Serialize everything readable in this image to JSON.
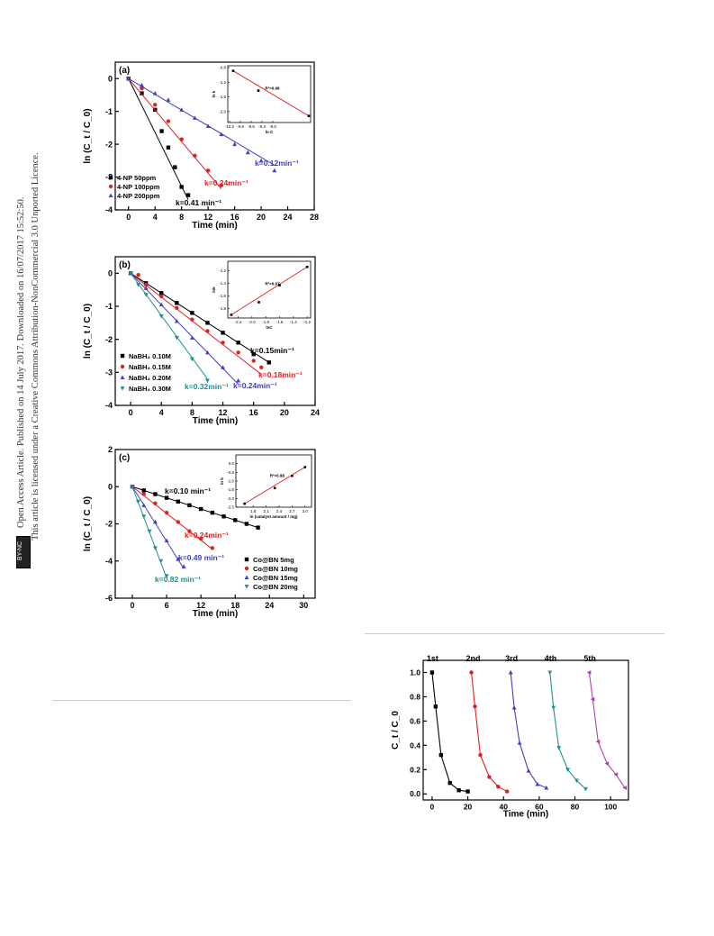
{
  "sidebar": {
    "line1": "Open Access Article. Published on 14 July 2017. Downloaded on 16/07/2017 15:52:50.",
    "line2": "This article is licensed under a Creative Commons Attribution-NonCommercial 3.0 Unported Licence.",
    "badge": "BY-NC"
  },
  "chart_data": [
    {
      "type": "scatter",
      "panel_label": "(a)",
      "xlabel": "Time (min)",
      "ylabel": "ln (C_t / C_0)",
      "xlim": [
        -2,
        28
      ],
      "ylim": [
        -4,
        0.5
      ],
      "xticks": [
        "0",
        "4",
        "8",
        "12",
        "16",
        "20",
        "24",
        "28"
      ],
      "yticks": [
        "0",
        "-1",
        "-2",
        "-3",
        "-4"
      ],
      "legend": "bottom-left",
      "series": [
        {
          "name": "4-NP 50ppm",
          "color": "#000000",
          "marker": "square",
          "x": [
            0,
            2,
            4,
            5,
            6,
            7,
            8,
            9
          ],
          "y": [
            0,
            -0.45,
            -0.95,
            -1.6,
            -2.1,
            -2.7,
            -3.3,
            -3.55
          ],
          "fit_slope": -0.41,
          "k_label": "k=0.41 min⁻¹"
        },
        {
          "name": "4-NP 100ppm",
          "color": "#e02020",
          "marker": "circle",
          "x": [
            0,
            2,
            4,
            6,
            8,
            10,
            12,
            14
          ],
          "y": [
            0,
            -0.3,
            -0.8,
            -1.3,
            -1.85,
            -2.35,
            -2.8,
            -3.25
          ],
          "fit_slope": -0.24,
          "k_label": "k=0.24min⁻¹"
        },
        {
          "name": "4-NP 200ppm",
          "color": "#4040c0",
          "marker": "triangle",
          "x": [
            0,
            2,
            4,
            6,
            8,
            10,
            12,
            14,
            16,
            18,
            20,
            22
          ],
          "y": [
            0,
            -0.2,
            -0.45,
            -0.65,
            -0.95,
            -1.2,
            -1.45,
            -1.7,
            -2.0,
            -2.25,
            -2.5,
            -2.8
          ],
          "fit_slope": -0.12,
          "k_label": "k=0.12min⁻¹"
        }
      ],
      "inset": {
        "xlabel": "ln C",
        "ylabel": "ln k",
        "r2": "R²=0.98",
        "xlim": [
          -10.25,
          -7.95
        ],
        "ylim": [
          -2.3,
          -0.75
        ],
        "xticks": [
          "-10.2",
          "-9.9",
          "-9.6",
          "-9.3",
          "-9.0"
        ],
        "yticks": [
          "-0.8",
          "-1.2",
          "-1.6",
          "-2.0"
        ],
        "x": [
          -10.1,
          -9.4,
          -8.0
        ],
        "y": [
          -0.89,
          -1.43,
          -2.12
        ]
      }
    },
    {
      "type": "scatter",
      "panel_label": "(b)",
      "xlabel": "Time (min)",
      "ylabel": "ln (C_t / C_0)",
      "xlim": [
        -2,
        24
      ],
      "ylim": [
        -4,
        0.5
      ],
      "xticks": [
        "0",
        "4",
        "8",
        "12",
        "16",
        "20",
        "24"
      ],
      "yticks": [
        "0",
        "-1",
        "-2",
        "-3",
        "-4"
      ],
      "legend": "bottom-left",
      "series": [
        {
          "name": "NaBH₄ 0.10M",
          "color": "#000000",
          "marker": "square",
          "x": [
            0,
            2,
            4,
            6,
            8,
            10,
            12,
            14,
            16,
            18
          ],
          "y": [
            0,
            -0.3,
            -0.6,
            -0.9,
            -1.2,
            -1.5,
            -1.8,
            -2.1,
            -2.45,
            -2.7
          ],
          "fit_slope": -0.15,
          "k_label": "k=0.15min⁻¹"
        },
        {
          "name": "NaBH₄ 0.15M",
          "color": "#e02020",
          "marker": "circle",
          "x": [
            0,
            1,
            2,
            4,
            6,
            8,
            10,
            12,
            14,
            16,
            17
          ],
          "y": [
            0,
            -0.05,
            -0.35,
            -0.7,
            -1.05,
            -1.4,
            -1.75,
            -2.1,
            -2.4,
            -2.65,
            -2.85
          ],
          "fit_slope": -0.18,
          "k_label": "k=0.18min⁻¹"
        },
        {
          "name": "NaBH₄ 0.20M",
          "color": "#4040c0",
          "marker": "triangle",
          "x": [
            0,
            2,
            4,
            6,
            8,
            10,
            12,
            14
          ],
          "y": [
            0,
            -0.45,
            -0.95,
            -1.45,
            -1.95,
            -2.4,
            -2.85,
            -3.25
          ],
          "fit_slope": -0.24,
          "k_label": "k=0.24min⁻¹"
        },
        {
          "name": "NaBH₄ 0.30M",
          "color": "#209090",
          "marker": "triangle-down",
          "x": [
            0,
            1,
            2,
            4,
            6,
            8,
            10
          ],
          "y": [
            0,
            -0.35,
            -0.65,
            -1.3,
            -1.95,
            -2.6,
            -3.25
          ],
          "fit_slope": -0.32,
          "k_label": "k=0.32min⁻¹"
        }
      ],
      "inset": {
        "xlabel": "lnC",
        "ylabel": "lnk",
        "r2": "R²=0.97",
        "xlim": [
          -2.35,
          -1.15
        ],
        "ylim": [
          -1.95,
          -1.05
        ],
        "xticks": [
          "-2.2",
          "-2.0",
          "-1.8",
          "-1.6",
          "-1.4",
          "-1.2"
        ],
        "yticks": [
          "-1.2",
          "-1.4",
          "-1.6",
          "-1.8"
        ],
        "x": [
          -2.3,
          -1.9,
          -1.6,
          -1.2
        ],
        "y": [
          -1.9,
          -1.7,
          -1.43,
          -1.14
        ]
      }
    },
    {
      "type": "scatter",
      "panel_label": "(c)",
      "xlabel": "Time (min)",
      "ylabel": "ln (C_t / C_0)",
      "xlim": [
        -3,
        32
      ],
      "ylim": [
        -6,
        2
      ],
      "xticks": [
        "0",
        "6",
        "12",
        "18",
        "24",
        "30"
      ],
      "yticks": [
        "2",
        "0",
        "-2",
        "-4",
        "-6"
      ],
      "legend": "bottom-right",
      "series": [
        {
          "name": "Co@BN 5mg",
          "color": "#000000",
          "marker": "square",
          "x": [
            0,
            2,
            4,
            6,
            8,
            10,
            12,
            14,
            16,
            18,
            20,
            22
          ],
          "y": [
            0,
            -0.2,
            -0.4,
            -0.6,
            -0.8,
            -1.0,
            -1.2,
            -1.4,
            -1.6,
            -1.8,
            -2.0,
            -2.2
          ],
          "fit_slope": -0.1,
          "k_label": "k=0.10 min⁻¹"
        },
        {
          "name": "Co@BN 10mg",
          "color": "#e02020",
          "marker": "circle",
          "x": [
            0,
            2,
            4,
            6,
            8,
            10,
            12,
            14
          ],
          "y": [
            0,
            -0.4,
            -0.9,
            -1.4,
            -1.9,
            -2.4,
            -2.8,
            -3.3
          ],
          "fit_slope": -0.24,
          "k_label": "k=0.24min⁻¹"
        },
        {
          "name": "Co@BN 15mg",
          "color": "#4040c0",
          "marker": "triangle",
          "x": [
            0,
            2,
            4,
            6,
            8,
            9
          ],
          "y": [
            0,
            -1.0,
            -1.9,
            -2.9,
            -3.9,
            -4.3
          ],
          "fit_slope": -0.49,
          "k_label": "k=0.49 min⁻¹"
        },
        {
          "name": "Co@BN 20mg",
          "color": "#209090",
          "marker": "triangle-down",
          "x": [
            0,
            1,
            2,
            3,
            4,
            5,
            6
          ],
          "y": [
            0,
            -0.8,
            -1.6,
            -2.4,
            -3.3,
            -4.0,
            -4.8
          ],
          "fit_slope": -0.82,
          "k_label": "k=0.82 min⁻¹"
        }
      ],
      "inset": {
        "xlabel": "ln (catalyst amount / mg)",
        "ylabel": "ln k",
        "r2": "R²=0.98",
        "xlim": [
          1.4,
          3.15
        ],
        "ylim": [
          -2.5,
          0.5
        ],
        "xticks": [
          "1.8",
          "2.1",
          "2.4",
          "2.7",
          "3.0"
        ],
        "yticks": [
          "0.0",
          "-0.5",
          "-1.0",
          "-1.5",
          "-2.0",
          "-2.5"
        ],
        "x": [
          1.6,
          2.3,
          2.7,
          3.0
        ],
        "y": [
          -2.3,
          -1.4,
          -0.7,
          -0.2
        ]
      }
    },
    {
      "type": "line",
      "xlabel": "Time (min)",
      "ylabel": "C_t / C_0",
      "xlim": [
        -5,
        110
      ],
      "ylim": [
        -0.05,
        1.1
      ],
      "xticks": [
        "0",
        "20",
        "40",
        "60",
        "80",
        "100"
      ],
      "yticks": [
        "0.0",
        "0.2",
        "0.4",
        "0.6",
        "0.8",
        "1.0"
      ],
      "series": [
        {
          "name": "1st",
          "color": "#000000",
          "marker": "square",
          "x": [
            0,
            2,
            5,
            10,
            15,
            20
          ],
          "y": [
            1.0,
            0.72,
            0.32,
            0.09,
            0.03,
            0.02
          ]
        },
        {
          "name": "2nd",
          "color": "#e02020",
          "marker": "circle",
          "x": [
            22,
            24,
            27,
            32,
            37,
            42
          ],
          "y": [
            1.0,
            0.72,
            0.32,
            0.14,
            0.06,
            0.02
          ]
        },
        {
          "name": "3rd",
          "color": "#4040c0",
          "marker": "triangle",
          "x": [
            44,
            46,
            49,
            54,
            59,
            64
          ],
          "y": [
            1.0,
            0.71,
            0.42,
            0.19,
            0.08,
            0.05
          ]
        },
        {
          "name": "4th",
          "color": "#209090",
          "marker": "triangle-down",
          "x": [
            66,
            68,
            71,
            76,
            81,
            86
          ],
          "y": [
            1.0,
            0.71,
            0.38,
            0.2,
            0.11,
            0.04
          ]
        },
        {
          "name": "5th",
          "color": "#b040b0",
          "marker": "triangle-left",
          "x": [
            88,
            90,
            93,
            98,
            103,
            108
          ],
          "y": [
            1.0,
            0.78,
            0.43,
            0.25,
            0.16,
            0.05
          ]
        }
      ]
    }
  ]
}
